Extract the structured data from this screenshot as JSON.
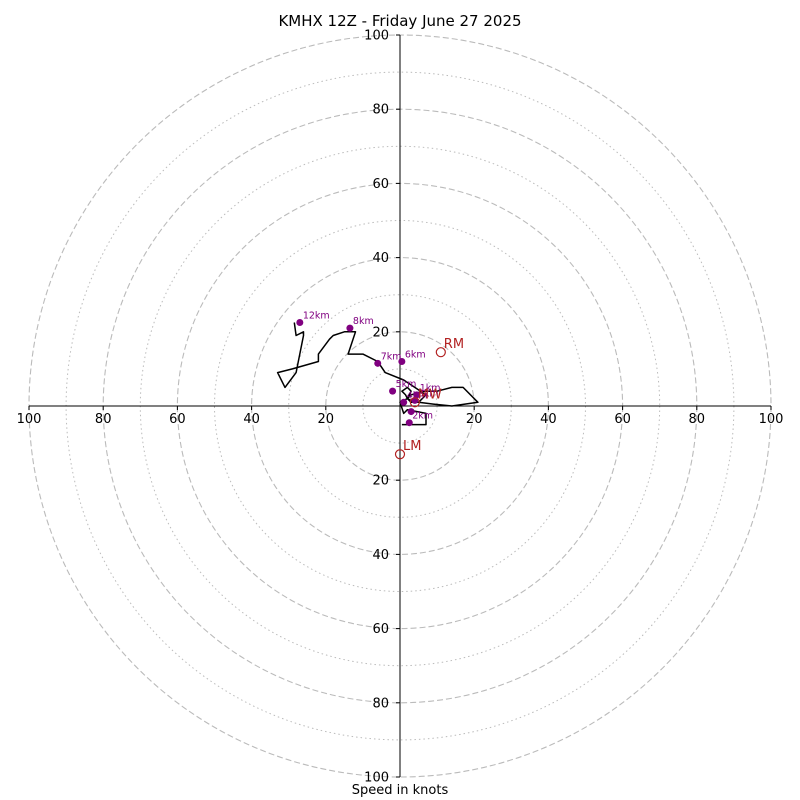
{
  "chart_data": {
    "type": "line",
    "title": "KMHX 12Z - Friday June 27 2025",
    "xlabel": "Speed in knots",
    "ylabel": "",
    "xlim": [
      -100,
      100
    ],
    "ylim": [
      -100,
      100
    ],
    "ring_major": [
      20,
      40,
      60,
      80,
      100
    ],
    "ring_minor": [
      10,
      30,
      50,
      70,
      90
    ],
    "tick_labels": [
      "100",
      "80",
      "60",
      "40",
      "20",
      "20",
      "40",
      "60",
      "80",
      "100"
    ],
    "grid": true,
    "series": [
      {
        "color": "#000000",
        "x": [
          0.5,
          7,
          7,
          2,
          1,
          0,
          2,
          3,
          6,
          10,
          14,
          17,
          21,
          14,
          9,
          5,
          3,
          2,
          1.5,
          0.5,
          2,
          3,
          2.5,
          2,
          3,
          5,
          7,
          4,
          1,
          -4,
          -6,
          -10,
          -14,
          -12,
          -15,
          -18,
          -19,
          -22,
          -22,
          -29,
          -33,
          -31,
          -28,
          -26,
          -26,
          -28,
          -28.5
        ],
        "y": [
          -5,
          -5,
          -2,
          -1,
          -2,
          1,
          2,
          3,
          4,
          4,
          5,
          5,
          1,
          0,
          0.5,
          1,
          1.5,
          2,
          3,
          4,
          5,
          4,
          3,
          2,
          1,
          1,
          3,
          5,
          7,
          9,
          12,
          14,
          14,
          20,
          20,
          19,
          18,
          14,
          12,
          10,
          9,
          5,
          9,
          19,
          20,
          19,
          22.5
        ]
      }
    ],
    "height_markers": [
      {
        "label": "12km",
        "x": -27,
        "y": 22.5
      },
      {
        "label": "8km",
        "x": -13.5,
        "y": 21
      },
      {
        "label": "7km",
        "x": -6,
        "y": 11.5
      },
      {
        "label": "6km",
        "x": 0.5,
        "y": 12
      },
      {
        "label": "5km",
        "x": -2,
        "y": 4
      },
      {
        "label": "1km",
        "x": 4.5,
        "y": 3
      },
      {
        "label": "4km",
        "x": 1,
        "y": 1
      },
      {
        "label": "3km",
        "x": 4,
        "y": 1.5
      },
      {
        "label": "2km",
        "x": 2.5,
        "y": -4.5
      },
      {
        "label": "",
        "x": 3,
        "y": -1.5
      }
    ],
    "motion_points": [
      {
        "label": "RM",
        "x": 11,
        "y": 14.5,
        "color": "#b22222"
      },
      {
        "label": "LM",
        "x": 0,
        "y": -13,
        "color": "#b22222"
      },
      {
        "label": "MW",
        "x": 4,
        "y": 1,
        "color": "#b22222"
      }
    ],
    "colors": {
      "grid": "#bbbbbb",
      "axis": "#000000",
      "trace": "#000000",
      "marker": "#800080",
      "motion": "#b22222"
    }
  }
}
